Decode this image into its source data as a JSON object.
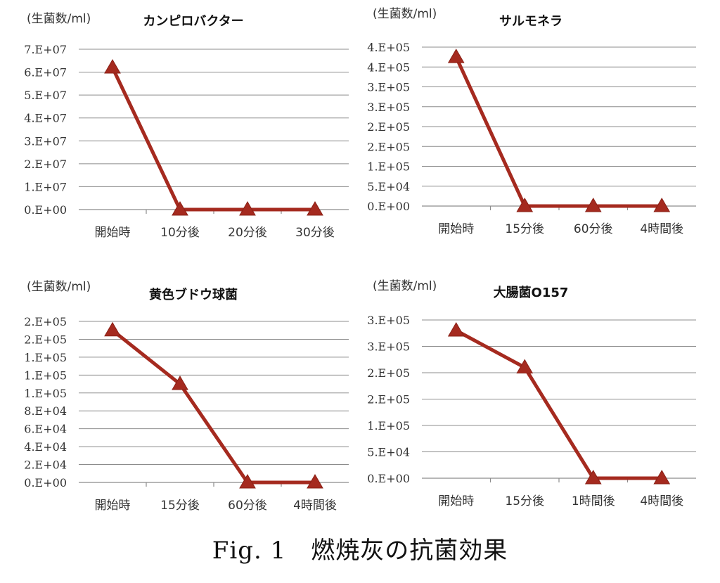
{
  "caption": "Fig. 1　燃焼灰の抗菌効果",
  "chart_data": [
    {
      "type": "line",
      "title": "カンピロバクター",
      "ylabel": "(生菌数/ml)",
      "categories": [
        "開始時",
        "10分後",
        "20分後",
        "30分後"
      ],
      "yticks": [
        "0.E+00",
        "1.E+07",
        "2.E+07",
        "3.E+07",
        "4.E+07",
        "5.E+07",
        "6.E+07",
        "7.E+07"
      ],
      "ylim": [
        0,
        70000000
      ],
      "grid": true,
      "series": [
        {
          "values": [
            62000000,
            0,
            0,
            0
          ],
          "color": "#a52a1f",
          "marker": "triangle"
        }
      ]
    },
    {
      "type": "line",
      "title": "サルモネラ",
      "ylabel": "(生菌数/ml)",
      "categories": [
        "開始時",
        "15分後",
        "60分後",
        "4時間後"
      ],
      "yticks": [
        "0.E+00",
        "5.E+04",
        "1.E+05",
        "2.E+05",
        "2.E+05",
        "3.E+05",
        "3.E+05",
        "4.E+05",
        "4.E+05"
      ],
      "ylim": [
        0,
        400000
      ],
      "grid": true,
      "series": [
        {
          "values": [
            375000,
            0,
            0,
            0
          ],
          "color": "#a52a1f",
          "marker": "triangle"
        }
      ]
    },
    {
      "type": "line",
      "title": "黄色ブドウ球菌",
      "ylabel": "(生菌数/ml)",
      "categories": [
        "開始時",
        "15分後",
        "60分後",
        "4時間後"
      ],
      "yticks": [
        "0.E+00",
        "2.E+04",
        "4.E+04",
        "6.E+04",
        "8.E+04",
        "1.E+05",
        "1.E+05",
        "1.E+05",
        "2.E+05",
        "2.E+05"
      ],
      "ylim": [
        0,
        180000
      ],
      "grid": true,
      "series": [
        {
          "values": [
            170000,
            110000,
            0,
            0
          ],
          "color": "#a52a1f",
          "marker": "triangle"
        }
      ]
    },
    {
      "type": "line",
      "title": "大腸菌O157",
      "ylabel": "(生菌数/ml)",
      "categories": [
        "開始時",
        "15分後",
        "1時間後",
        "4時間後"
      ],
      "yticks": [
        "0.E+00",
        "5.E+04",
        "1.E+05",
        "2.E+05",
        "2.E+05",
        "3.E+05",
        "3.E+05"
      ],
      "ylim": [
        0,
        300000
      ],
      "grid": true,
      "series": [
        {
          "values": [
            280000,
            210000,
            0,
            0
          ],
          "color": "#a52a1f",
          "marker": "triangle"
        }
      ]
    }
  ]
}
